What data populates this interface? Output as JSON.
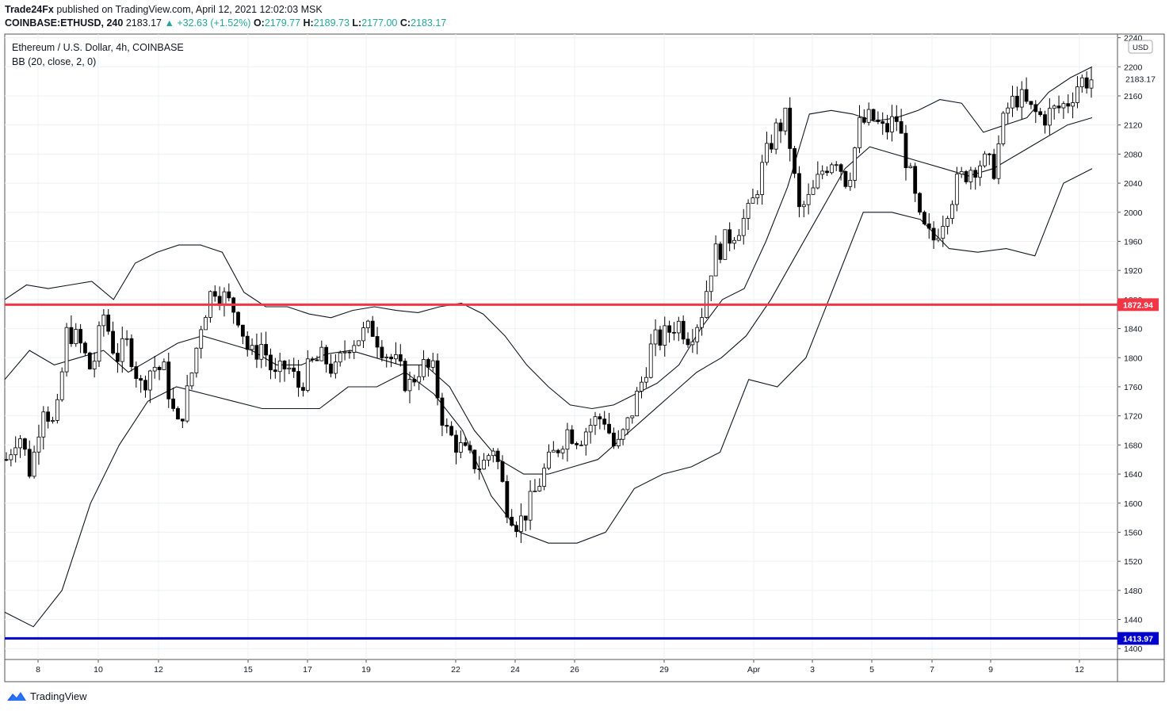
{
  "header": {
    "author": "Trade24Fx",
    "published_text": "published on TradingView.com, April 12, 2021 12:02:03 MSK",
    "symbol": "COINBASE:ETHUSD, 240",
    "last": "2183.17",
    "change": "▲ +32.63 (+1.52%)",
    "o_label": "O:",
    "o_val": "2179.77",
    "h_label": "H:",
    "h_val": "2189.73",
    "l_label": "L:",
    "l_val": "2177.00",
    "c_label": "C:",
    "c_val": "2183.17"
  },
  "legend": {
    "title": "Ethereum / U.S. Dollar, 4h, COINBASE",
    "indicator": "BB (20, close, 2, 0)"
  },
  "brand": {
    "name": "TradingView"
  },
  "chart_data": {
    "type": "candlestick",
    "title": "Ethereum / U.S. Dollar, 4h, COINBASE",
    "currency": "USD",
    "ylim": [
      1385,
      2245
    ],
    "y_ticks": [
      "2240",
      "2200",
      "2160",
      "2120",
      "2080",
      "2040",
      "2000",
      "1960",
      "1920",
      "1880",
      "1840",
      "1800",
      "1760",
      "1720",
      "1680",
      "1640",
      "1600",
      "1560",
      "1520",
      "1480",
      "1440",
      "1400"
    ],
    "x_ticks": [
      "8",
      "10",
      "12",
      "15",
      "17",
      "19",
      "22",
      "24",
      "26",
      "29",
      "Apr",
      "3",
      "5",
      "7",
      "9",
      "12"
    ],
    "last_price_label": "2183.17",
    "horizontal_lines": [
      {
        "value": 1872.94,
        "label": "1872.94",
        "color": "#f23645"
      },
      {
        "value": 1413.97,
        "label": "1413.97",
        "color": "#0000cc"
      }
    ],
    "close_path": [
      1660,
      1700,
      1640,
      1740,
      1700,
      1840,
      1820,
      1780,
      1860,
      1800,
      1820,
      1760,
      1790,
      1780,
      1700,
      1760,
      1850,
      1900,
      1880,
      1860,
      1800,
      1820,
      1770,
      1790,
      1760,
      1790,
      1800,
      1780,
      1820,
      1830,
      1840,
      1810,
      1790,
      1760,
      1790,
      1780,
      1700,
      1680,
      1660,
      1650,
      1680,
      1600,
      1570,
      1600,
      1640,
      1670,
      1700,
      1690,
      1710,
      1720,
      1670,
      1710,
      1760,
      1820,
      1830,
      1850,
      1830,
      1860,
      1940,
      1960,
      1980,
      2000,
      2060,
      2110,
      2130,
      2000,
      2020,
      2060,
      2080,
      2040,
      2120,
      2130,
      2110,
      2130,
      2060,
      1980,
      1960,
      2000,
      2040,
      2060,
      2070,
      2060,
      2140,
      2160,
      2140,
      2130,
      2140,
      2150,
      2180,
      2183
    ],
    "upper_band": [
      1880,
      1900,
      1895,
      1900,
      1905,
      1880,
      1930,
      1945,
      1955,
      1955,
      1945,
      1890,
      1870,
      1870,
      1860,
      1855,
      1865,
      1870,
      1865,
      1862,
      1870,
      1875,
      1860,
      1830,
      1790,
      1760,
      1735,
      1730,
      1735,
      1750,
      1765,
      1790,
      1840,
      1880,
      1895,
      1960,
      2035,
      2135,
      2140,
      2135,
      2125,
      2130,
      2140,
      2155,
      2150,
      2110,
      2120,
      2130,
      2165,
      2185,
      2200
    ],
    "middle_band": [
      1770,
      1810,
      1790,
      1800,
      1810,
      1780,
      1800,
      1820,
      1830,
      1820,
      1810,
      1790,
      1790,
      1805,
      1810,
      1800,
      1790,
      1790,
      1760,
      1700,
      1660,
      1640,
      1640,
      1650,
      1660,
      1690,
      1720,
      1750,
      1780,
      1800,
      1830,
      1880,
      1940,
      2000,
      2060,
      2090,
      2080,
      2070,
      2060,
      2050,
      2060,
      2080,
      2100,
      2120,
      2130
    ],
    "lower_band": [
      1450,
      1430,
      1480,
      1600,
      1680,
      1740,
      1760,
      1750,
      1740,
      1730,
      1730,
      1730,
      1760,
      1760,
      1780,
      1750,
      1700,
      1610,
      1560,
      1545,
      1545,
      1560,
      1620,
      1640,
      1650,
      1670,
      1770,
      1760,
      1800,
      1900,
      2000,
      2000,
      1990,
      1950,
      1945,
      1950,
      1940,
      2040,
      2060
    ]
  }
}
